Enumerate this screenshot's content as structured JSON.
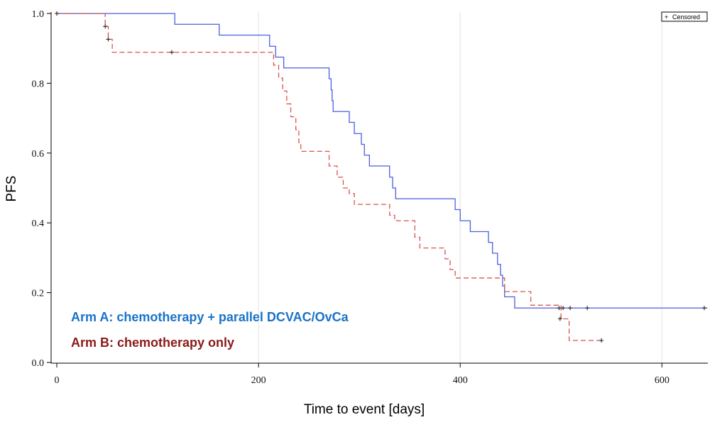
{
  "chart_data": {
    "type": "line",
    "step": true,
    "xlabel": "Time to event [days]",
    "ylabel": "PFS",
    "xlim": [
      0,
      645
    ],
    "ylim": [
      0,
      1.0
    ],
    "xticks": [
      0,
      200,
      400,
      600
    ],
    "yticks": [
      0.0,
      0.2,
      0.4,
      0.6,
      0.8,
      1.0
    ],
    "ytick_labels": [
      "0.0",
      "0.2",
      "0.4",
      "0.6",
      "0.8",
      "1.0"
    ],
    "xtick_labels": [
      "0",
      "200",
      "400",
      "600"
    ],
    "grid": "vertical",
    "legend": {
      "position": "top-right",
      "censored_label": "Censored",
      "censored_symbol": "+"
    },
    "series": [
      {
        "name": "Arm A: chemotherapy + parallel DCVAC/OvCa",
        "color": "#4a5fe0",
        "label_color": "#1a73c8",
        "style": "solid",
        "steps": [
          [
            0,
            1.0
          ],
          [
            117,
            0.969
          ],
          [
            161,
            0.938
          ],
          [
            211,
            0.906
          ],
          [
            217,
            0.875
          ],
          [
            225,
            0.844
          ],
          [
            270,
            0.813
          ],
          [
            272,
            0.781
          ],
          [
            273,
            0.75
          ],
          [
            274,
            0.719
          ],
          [
            290,
            0.688
          ],
          [
            295,
            0.656
          ],
          [
            302,
            0.625
          ],
          [
            305,
            0.594
          ],
          [
            310,
            0.563
          ],
          [
            330,
            0.531
          ],
          [
            333,
            0.5
          ],
          [
            336,
            0.469
          ],
          [
            395,
            0.438
          ],
          [
            400,
            0.406
          ],
          [
            410,
            0.375
          ],
          [
            428,
            0.344
          ],
          [
            432,
            0.313
          ],
          [
            437,
            0.281
          ],
          [
            440,
            0.25
          ],
          [
            442,
            0.219
          ],
          [
            444,
            0.188
          ],
          [
            454,
            0.156
          ],
          [
            645,
            0.156
          ]
        ],
        "censored": [
          [
            0,
            1.0
          ],
          [
            498,
            0.156
          ],
          [
            502,
            0.156
          ],
          [
            509,
            0.156
          ],
          [
            526,
            0.156
          ],
          [
            642,
            0.156
          ]
        ]
      },
      {
        "name": "Arm B: chemotherapy only",
        "color": "#d9534f",
        "label_color": "#8b1a1a",
        "style": "dashed",
        "steps": [
          [
            0,
            1.0
          ],
          [
            48,
            0.963
          ],
          [
            51,
            0.926
          ],
          [
            55,
            0.889
          ],
          [
            215,
            0.852
          ],
          [
            220,
            0.815
          ],
          [
            224,
            0.778
          ],
          [
            228,
            0.741
          ],
          [
            232,
            0.704
          ],
          [
            237,
            0.667
          ],
          [
            240,
            0.63
          ],
          [
            242,
            0.605
          ],
          [
            270,
            0.563
          ],
          [
            278,
            0.531
          ],
          [
            284,
            0.5
          ],
          [
            290,
            0.484
          ],
          [
            295,
            0.453
          ],
          [
            330,
            0.422
          ],
          [
            335,
            0.406
          ],
          [
            355,
            0.359
          ],
          [
            360,
            0.328
          ],
          [
            385,
            0.297
          ],
          [
            390,
            0.266
          ],
          [
            395,
            0.242
          ],
          [
            444,
            0.203
          ],
          [
            470,
            0.164
          ],
          [
            500,
            0.125
          ],
          [
            508,
            0.063
          ],
          [
            540,
            0.063
          ]
        ],
        "censored": [
          [
            48,
            0.963
          ],
          [
            51,
            0.926
          ],
          [
            114,
            0.889
          ],
          [
            499,
            0.125
          ],
          [
            540,
            0.063
          ]
        ]
      }
    ]
  }
}
